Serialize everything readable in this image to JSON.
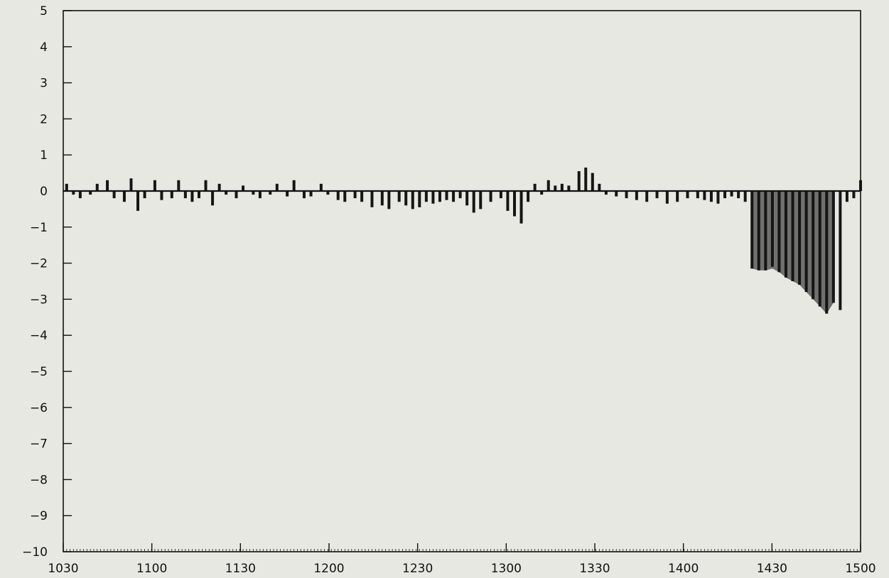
{
  "chart_data": {
    "type": "bar",
    "title": "",
    "xlabel": "",
    "ylabel": "",
    "xlim": [
      1030,
      1500
    ],
    "ylim": [
      -10,
      5
    ],
    "grid": false,
    "x_ticks": [
      "1030",
      "1100",
      "1130",
      "1200",
      "1230",
      "1300",
      "1330",
      "1400",
      "1430",
      "1500"
    ],
    "y_ticks": [
      "5",
      "4",
      "3",
      "2",
      "1",
      "0",
      "−1",
      "−2",
      "−3",
      "−4",
      "−5",
      "−6",
      "−7",
      "−8",
      "−9",
      "−10"
    ],
    "bar_color": "#151515",
    "fill_color": "#5a5a5a",
    "series": [
      {
        "x": [
          1032,
          1036,
          1040,
          1046,
          1050,
          1056,
          1060,
          1066,
          1070,
          1074,
          1078,
          1084,
          1088,
          1094,
          1098,
          1102,
          1106,
          1110,
          1114,
          1118,
          1122,
          1126,
          1132,
          1136,
          1142,
          1146,
          1152,
          1156,
          1162,
          1166,
          1172,
          1176,
          1182,
          1186,
          1192,
          1196,
          1202,
          1206,
          1212,
          1218,
          1222,
          1228,
          1232,
          1236,
          1240,
          1244,
          1248,
          1252,
          1256,
          1260,
          1264,
          1268,
          1272,
          1276,
          1282,
          1288,
          1292,
          1296,
          1300,
          1304,
          1308,
          1312,
          1316,
          1320,
          1324,
          1328,
          1334,
          1338,
          1342,
          1346,
          1350,
          1356,
          1362,
          1368,
          1374,
          1380,
          1386,
          1392,
          1398,
          1404,
          1408,
          1412,
          1416,
          1420,
          1424,
          1428,
          1432,
          1436,
          1440,
          1444,
          1448,
          1452,
          1456,
          1460,
          1464,
          1468,
          1472,
          1476,
          1480,
          1484,
          1488,
          1492,
          1496,
          1500
        ],
        "values": [
          0.2,
          -0.1,
          -0.2,
          -0.1,
          0.2,
          0.3,
          -0.2,
          -0.3,
          0.35,
          -0.55,
          -0.2,
          0.3,
          -0.25,
          -0.2,
          0.3,
          -0.2,
          -0.3,
          -0.2,
          0.3,
          -0.4,
          0.2,
          -0.1,
          -0.2,
          0.15,
          -0.1,
          -0.2,
          -0.1,
          0.2,
          -0.15,
          0.3,
          -0.2,
          -0.15,
          0.2,
          -0.1,
          -0.25,
          -0.3,
          -0.2,
          -0.3,
          -0.45,
          -0.4,
          -0.5,
          -0.3,
          -0.4,
          -0.5,
          -0.45,
          -0.3,
          -0.35,
          -0.3,
          -0.25,
          -0.3,
          -0.2,
          -0.4,
          -0.6,
          -0.5,
          -0.3,
          -0.2,
          -0.55,
          -0.7,
          -0.9,
          -0.3,
          0.2,
          -0.1,
          0.3,
          0.15,
          0.2,
          0.15,
          0.55,
          0.65,
          0.5,
          0.2,
          -0.1,
          -0.15,
          -0.2,
          -0.25,
          -0.3,
          -0.2,
          -0.35,
          -0.3,
          -0.2,
          -0.2,
          -0.25,
          -0.3,
          -0.35,
          -0.2,
          -0.15,
          -0.2,
          -0.3,
          -2.15,
          -2.2,
          -2.2,
          -2.1,
          -2.25,
          -2.4,
          -2.5,
          -2.6,
          -2.8,
          -3.0,
          -3.2,
          -3.4,
          -3.1,
          -3.3,
          -0.3,
          -0.2,
          0.3
        ]
      }
    ]
  }
}
